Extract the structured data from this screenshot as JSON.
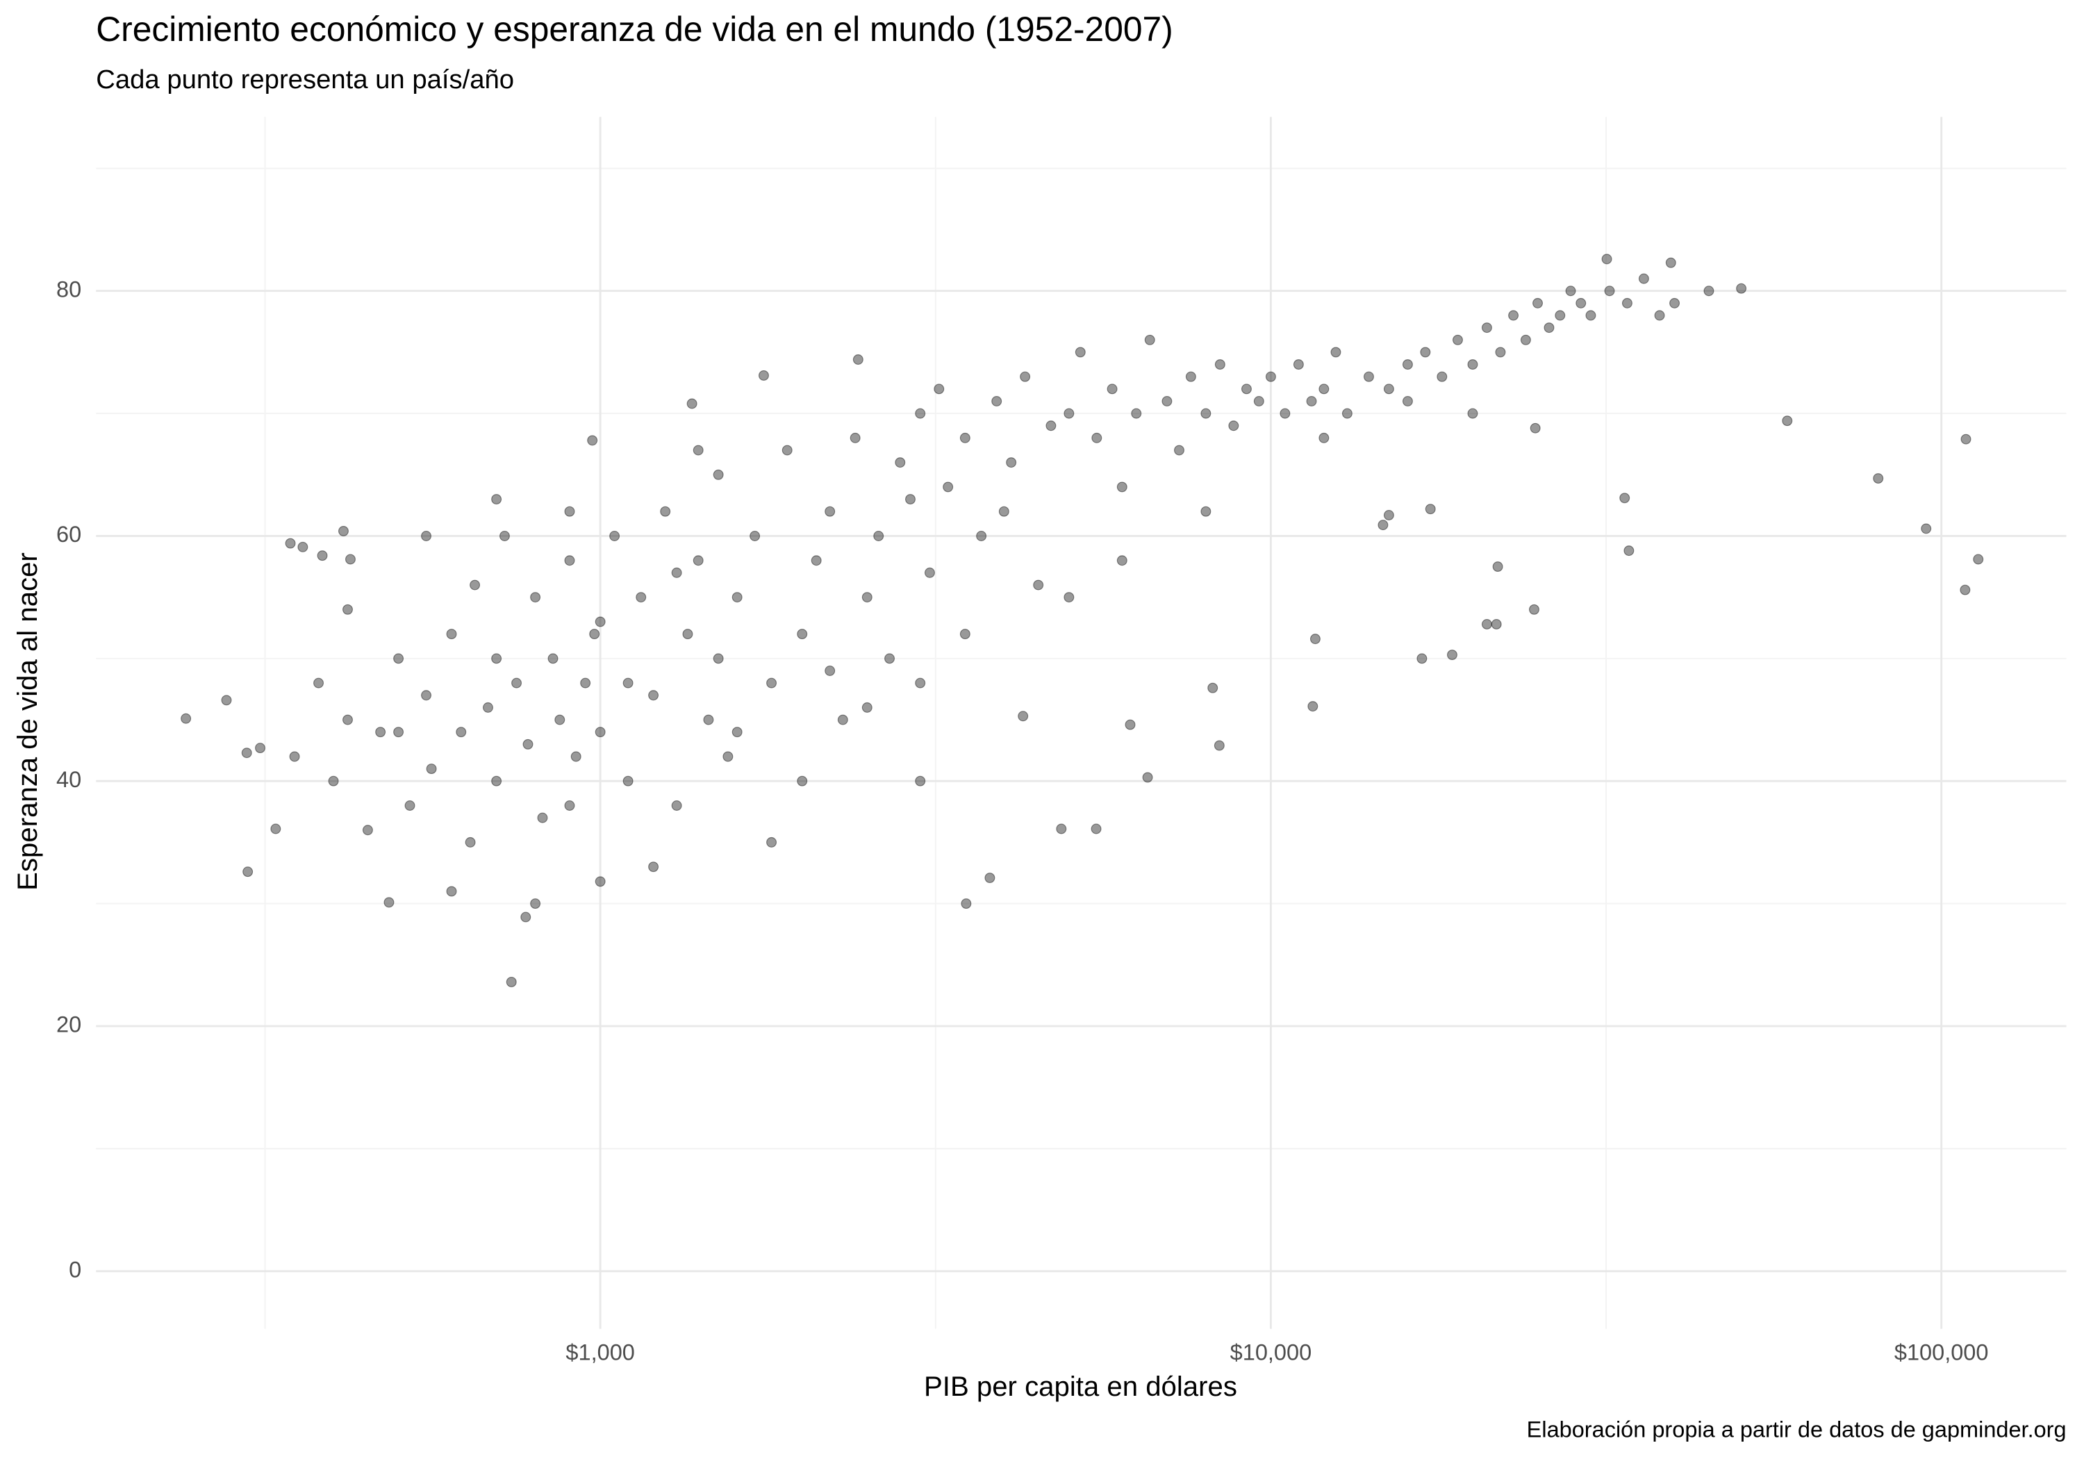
{
  "chart_data": {
    "type": "scatter",
    "title": "Crecimiento económico y esperanza de vida en el mundo (1952-2007)",
    "subtitle": "Cada punto representa un país/año",
    "x_label": "PIB per capita en dólares",
    "y_label": "Esperanza de vida al nacer",
    "caption": "Elaboración propia a partir de datos de gapminder.org",
    "color": "#000000",
    "log_x": true,
    "grid": true,
    "xlim": [
      177,
      153600
    ],
    "ylim": [
      -4.7,
      94.2
    ],
    "xticks": [
      {
        "value": 1000,
        "label": "$1,000"
      },
      {
        "value": 10000,
        "label": "$10,000"
      },
      {
        "value": 100000,
        "label": "$100,000"
      }
    ],
    "yticks": [
      0,
      20,
      40,
      60,
      80
    ],
    "x": [
      241,
      277,
      298,
      297,
      311,
      328,
      345,
      360,
      385,
      414,
      424,
      484,
      737,
      774,
      1000,
      973,
      1370,
      1753,
      2424,
      3513,
      3810,
      5490,
      6550,
      58900,
      80500,
      94900,
      108800,
      108500,
      113500,
      50300,
      31700,
      39500,
      33700,
      34200,
      14700,
      11650,
      11550,
      16800,
      18640,
      21000,
      21700,
      21800,
      24700,
      24800,
      17300,
      15000,
      8190,
      8380,
      6170,
      4870,
      4270,
      350,
      380,
      400,
      420,
      450,
      470,
      500,
      520,
      550,
      560,
      600,
      620,
      640,
      650,
      680,
      700,
      720,
      750,
      780,
      800,
      820,
      850,
      870,
      900,
      920,
      950,
      980,
      1000,
      1050,
      1100,
      1150,
      1200,
      1250,
      1300,
      1350,
      1400,
      1450,
      1500,
      1550,
      1600,
      1700,
      1800,
      1900,
      2000,
      2100,
      2200,
      2300,
      2400,
      2500,
      2600,
      2700,
      2800,
      2900,
      3000,
      3100,
      3200,
      3300,
      3500,
      3700,
      3900,
      4100,
      4300,
      4500,
      4700,
      5000,
      5200,
      5500,
      5800,
      6000,
      6300,
      6600,
      7000,
      7300,
      7600,
      8000,
      8400,
      8800,
      9200,
      9600,
      10000,
      10500,
      11000,
      11500,
      12000,
      12500,
      13000,
      14000,
      15000,
      16000,
      17000,
      18000,
      19000,
      20000,
      21000,
      22000,
      23000,
      24000,
      25000,
      26000,
      27000,
      28000,
      29000,
      30000,
      32000,
      34000,
      36000,
      38000,
      40000,
      45000,
      420,
      550,
      700,
      900,
      1100,
      1300,
      1600,
      2000,
      2500,
      3000,
      1800,
      1200,
      800,
      600,
      1000,
      1400,
      700,
      500,
      900,
      1500,
      2200,
      3500,
      4000,
      6000,
      8000,
      5000,
      3000,
      12000,
      20000,
      16000
    ],
    "values": [
      45.1,
      46.6,
      32.6,
      42.3,
      42.7,
      36.1,
      59.4,
      59.1,
      58.4,
      60.4,
      58.1,
      30.1,
      23.6,
      28.9,
      31.8,
      67.8,
      70.8,
      73.1,
      74.4,
      30.0,
      32.1,
      36.1,
      40.3,
      69.4,
      64.7,
      60.6,
      67.9,
      55.6,
      58.1,
      80.2,
      82.6,
      82.3,
      63.1,
      58.8,
      60.9,
      51.6,
      46.1,
      50.0,
      50.3,
      52.8,
      52.8,
      57.5,
      54.0,
      68.8,
      62.2,
      61.7,
      47.6,
      42.9,
      44.6,
      36.1,
      45.3,
      42,
      48,
      40,
      45,
      36,
      44,
      50,
      38,
      47,
      41,
      52,
      44,
      35,
      56,
      46,
      40,
      60,
      48,
      43,
      55,
      37,
      50,
      45,
      58,
      42,
      48,
      52,
      44,
      60,
      40,
      55,
      47,
      62,
      38,
      52,
      58,
      45,
      65,
      42,
      55,
      60,
      48,
      67,
      52,
      58,
      62,
      45,
      68,
      55,
      60,
      50,
      66,
      63,
      70,
      57,
      72,
      64,
      68,
      60,
      71,
      66,
      73,
      56,
      69,
      70,
      75,
      68,
      72,
      64,
      70,
      76,
      71,
      67,
      73,
      70,
      74,
      69,
      72,
      71,
      73,
      70,
      74,
      71,
      72,
      75,
      70,
      73,
      72,
      74,
      75,
      73,
      76,
      74,
      77,
      75,
      78,
      76,
      79,
      77,
      78,
      80,
      79,
      78,
      80,
      79,
      81,
      78,
      79,
      80,
      54,
      60,
      50,
      38,
      48,
      57,
      44,
      40,
      46,
      40,
      35,
      33,
      30,
      31,
      53,
      67,
      63,
      44,
      62,
      50,
      49,
      52,
      62,
      58,
      62,
      55,
      48,
      68,
      70,
      71
    ]
  }
}
